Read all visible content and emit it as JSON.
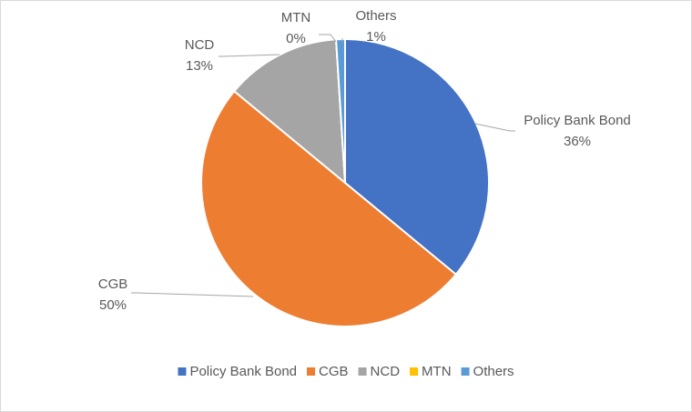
{
  "chart_data": {
    "type": "pie",
    "categories": [
      "Policy Bank Bond",
      "CGB",
      "NCD",
      "MTN",
      "Others"
    ],
    "values": [
      36,
      50,
      13,
      0,
      1
    ],
    "value_labels": [
      "36%",
      "50%",
      "13%",
      "0%",
      "1%"
    ],
    "colors": [
      "#4472c4",
      "#ed7d31",
      "#a5a5a5",
      "#ffc000",
      "#5b9bd5"
    ],
    "legend": "bottom"
  }
}
